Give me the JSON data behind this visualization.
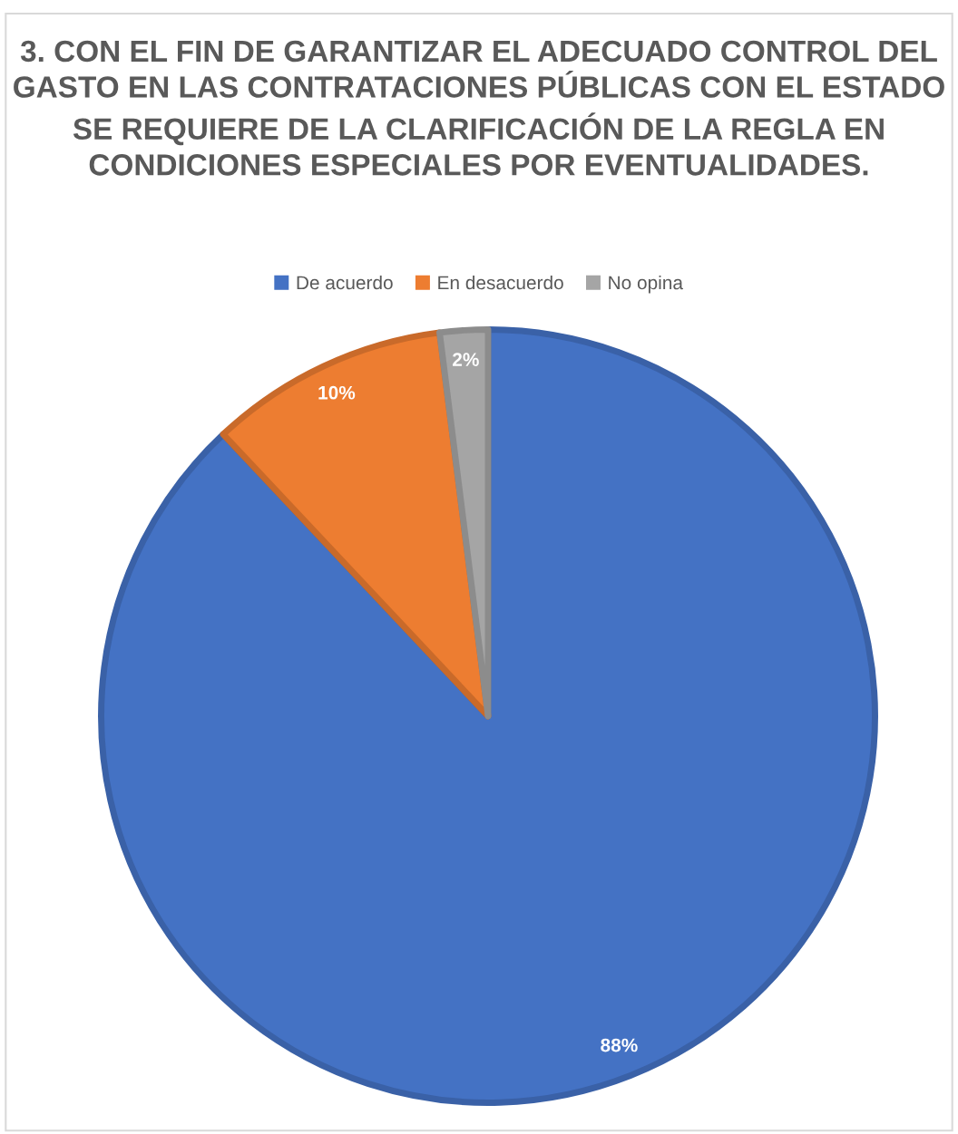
{
  "chart_data": {
    "type": "pie",
    "title": "3. CON EL FIN DE GARANTIZAR EL ADECUADO CONTROL DEL GASTO EN LAS CONTRATACIONES PÚBLICAS CON EL ESTADO SE REQUIERE DE LA CLARIFICACIÓN DE LA REGLA EN CONDICIONES ESPECIALES POR EVENTUALIDADES.",
    "categories": [
      "De acuerdo",
      "En desacuerdo",
      "No opina"
    ],
    "values": [
      88,
      10,
      2
    ],
    "colors": [
      "#4472c4",
      "#ed7d31",
      "#a5a5a5"
    ],
    "value_labels": [
      "88%",
      "10%",
      "2%"
    ],
    "legend": "top"
  }
}
